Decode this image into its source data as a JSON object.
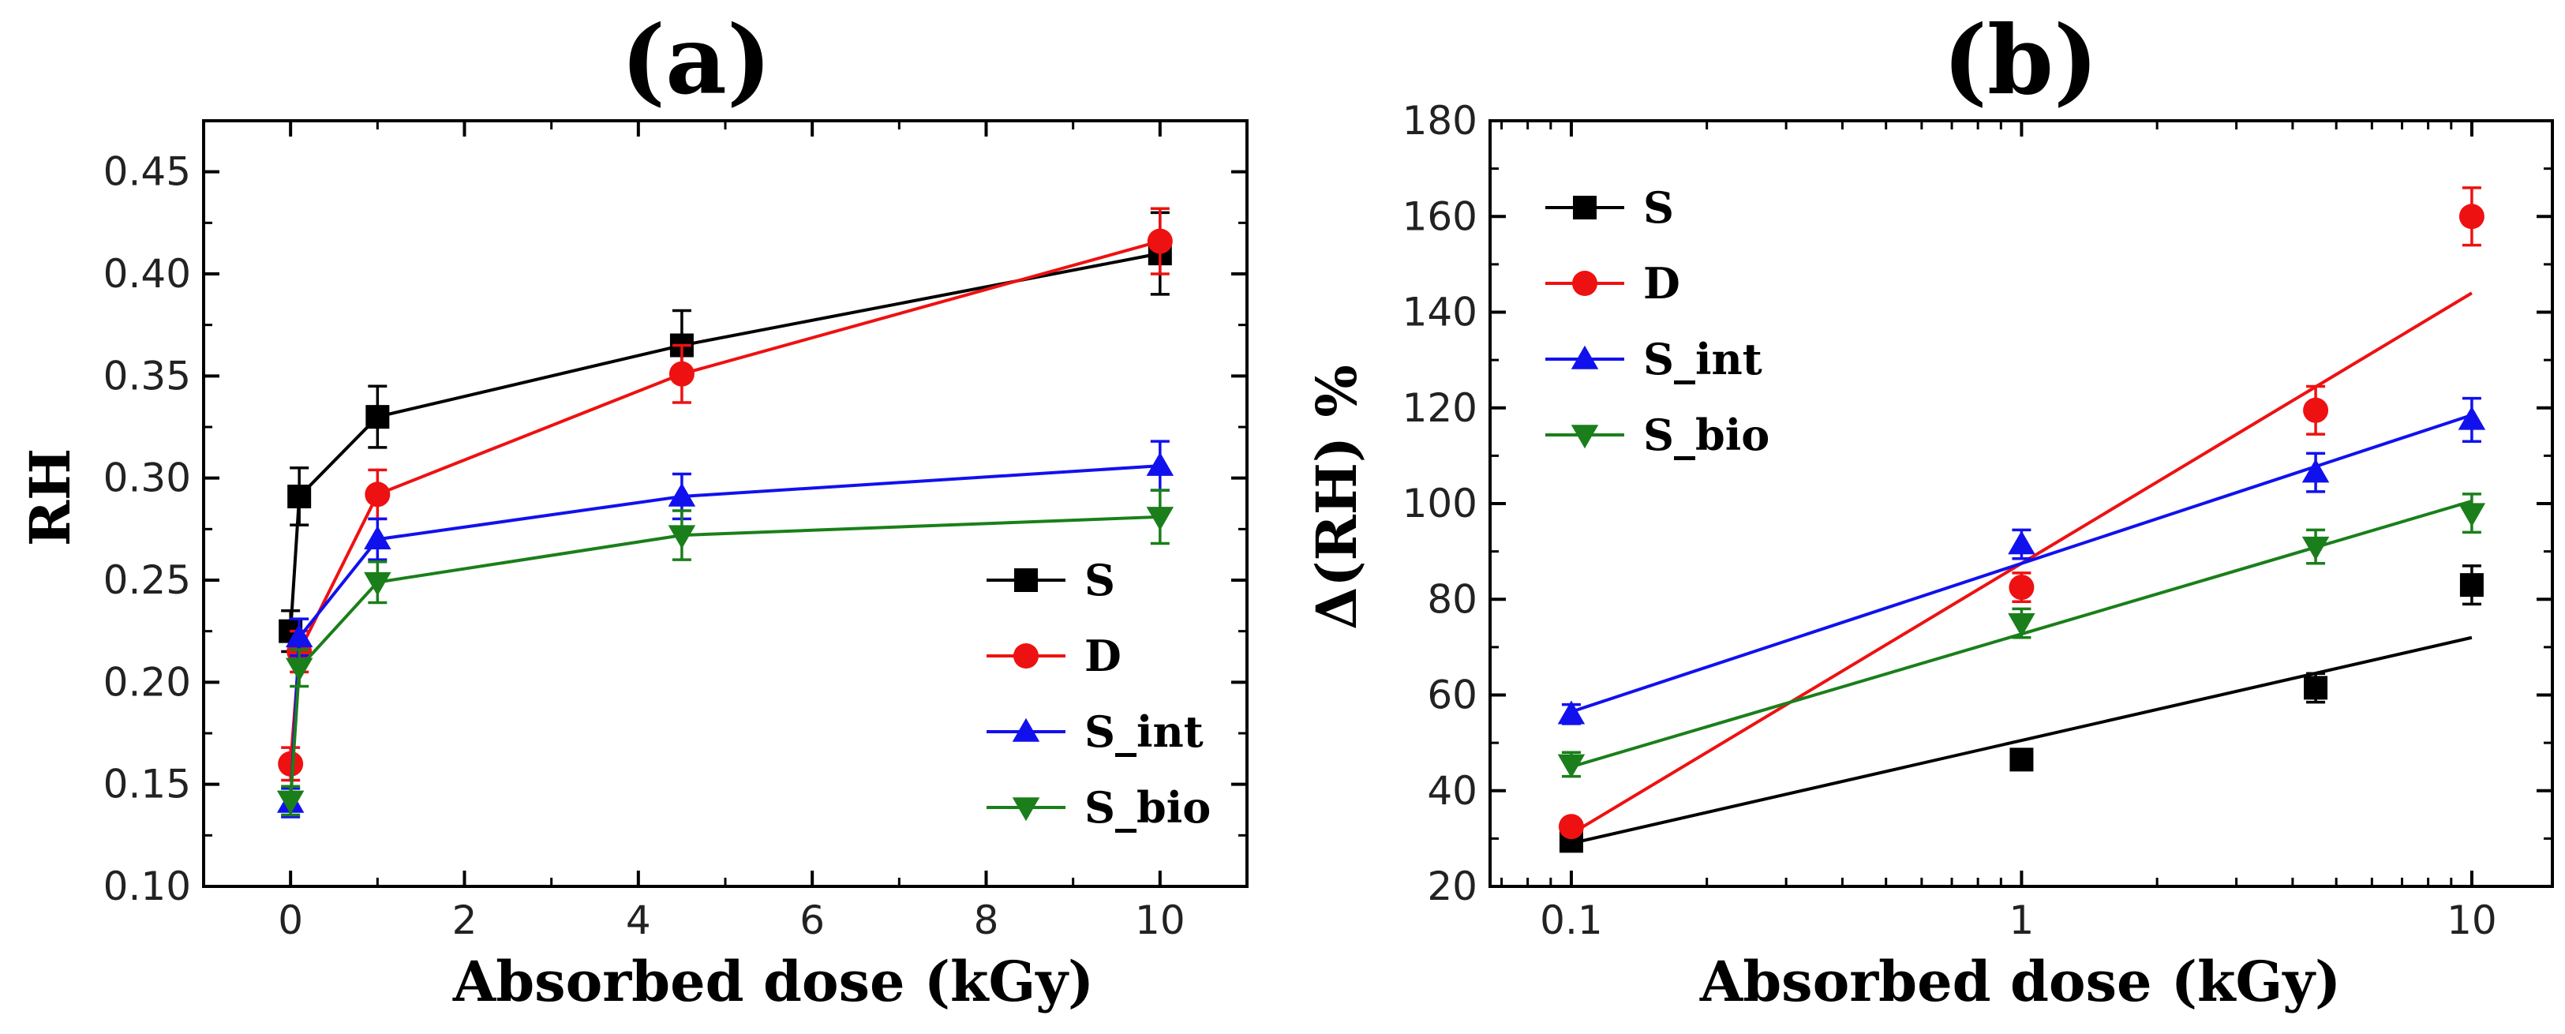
{
  "chart_data": [
    {
      "id": "a",
      "type": "line",
      "panel_label": "(a)",
      "title": "",
      "xlabel": "Absorbed dose (kGy)",
      "ylabel": "RH",
      "xscale": "linear",
      "xlim": [
        -1,
        11
      ],
      "ylim": [
        0.1,
        0.475
      ],
      "xticks": [
        0,
        2,
        4,
        6,
        8,
        10
      ],
      "xtick_labels": [
        "0",
        "2",
        "4",
        "6",
        "8",
        "10"
      ],
      "yticks": [
        0.1,
        0.15,
        0.2,
        0.25,
        0.3,
        0.35,
        0.4,
        0.45
      ],
      "ytick_labels": [
        "0.10",
        "0.15",
        "0.20",
        "0.25",
        "0.30",
        "0.35",
        "0.40",
        "0.45"
      ],
      "legend_position": "bottom-right",
      "x": [
        0,
        0.1,
        1,
        4.5,
        10
      ],
      "series": [
        {
          "name": "S",
          "color": "#000000",
          "marker": "square",
          "values": [
            0.225,
            0.291,
            0.33,
            0.365,
            0.41
          ],
          "errors": [
            0.01,
            0.014,
            0.015,
            0.017,
            0.02
          ]
        },
        {
          "name": "D",
          "color": "#ee1111",
          "marker": "circle",
          "values": [
            0.16,
            0.215,
            0.292,
            0.351,
            0.416
          ],
          "errors": [
            0.008,
            0.01,
            0.012,
            0.014,
            0.016
          ]
        },
        {
          "name": "S_int",
          "color": "#1111ee",
          "marker": "triangle-up",
          "values": [
            0.141,
            0.222,
            0.27,
            0.291,
            0.306
          ],
          "errors": [
            0.007,
            0.009,
            0.01,
            0.011,
            0.012
          ]
        },
        {
          "name": "S_bio",
          "color": "#1a7f1a",
          "marker": "triangle-down",
          "values": [
            0.142,
            0.207,
            0.249,
            0.272,
            0.281
          ],
          "errors": [
            0.007,
            0.009,
            0.01,
            0.012,
            0.013
          ]
        }
      ]
    },
    {
      "id": "b",
      "type": "scatter",
      "panel_label": "(b)",
      "title": "",
      "xlabel": "Absorbed dose (kGy)",
      "ylabel": "Δ(RH) %",
      "xscale": "log",
      "xlim": [
        0.066,
        15.1
      ],
      "ylim": [
        20,
        180
      ],
      "xticks": [
        0.1,
        1,
        10
      ],
      "xtick_labels": [
        "0.1",
        "1",
        "10"
      ],
      "yticks": [
        20,
        40,
        60,
        80,
        100,
        120,
        140,
        160,
        180
      ],
      "ytick_labels": [
        "20",
        "40",
        "60",
        "80",
        "100",
        "120",
        "140",
        "160",
        "180"
      ],
      "legend_position": "top-left",
      "x": [
        0.1,
        1,
        4.5,
        10
      ],
      "series": [
        {
          "name": "S",
          "color": "#000000",
          "marker": "square",
          "values": [
            29.5,
            46.5,
            61.5,
            83.0
          ],
          "errors": [
            1.5,
            2.0,
            3.0,
            4.0
          ],
          "fit_line": [
            29.0,
            72.0
          ]
        },
        {
          "name": "D",
          "color": "#ee1111",
          "marker": "circle",
          "values": [
            32.5,
            82.5,
            119.5,
            160.0
          ],
          "errors": [
            1.5,
            3.0,
            5.0,
            6.0
          ],
          "fit_line": [
            31.0,
            144.0
          ]
        },
        {
          "name": "S_int",
          "color": "#1111ee",
          "marker": "triangle-up",
          "values": [
            56.0,
            91.5,
            106.5,
            117.5
          ],
          "errors": [
            2.0,
            3.0,
            4.0,
            4.5
          ],
          "fit_line": [
            56.5,
            118.5
          ]
        },
        {
          "name": "S_bio",
          "color": "#1a7f1a",
          "marker": "triangle-down",
          "values": [
            45.5,
            75.0,
            91.0,
            98.0
          ],
          "errors": [
            2.5,
            3.0,
            3.5,
            4.0
          ],
          "fit_line": [
            45.0,
            100.5
          ]
        }
      ]
    }
  ]
}
